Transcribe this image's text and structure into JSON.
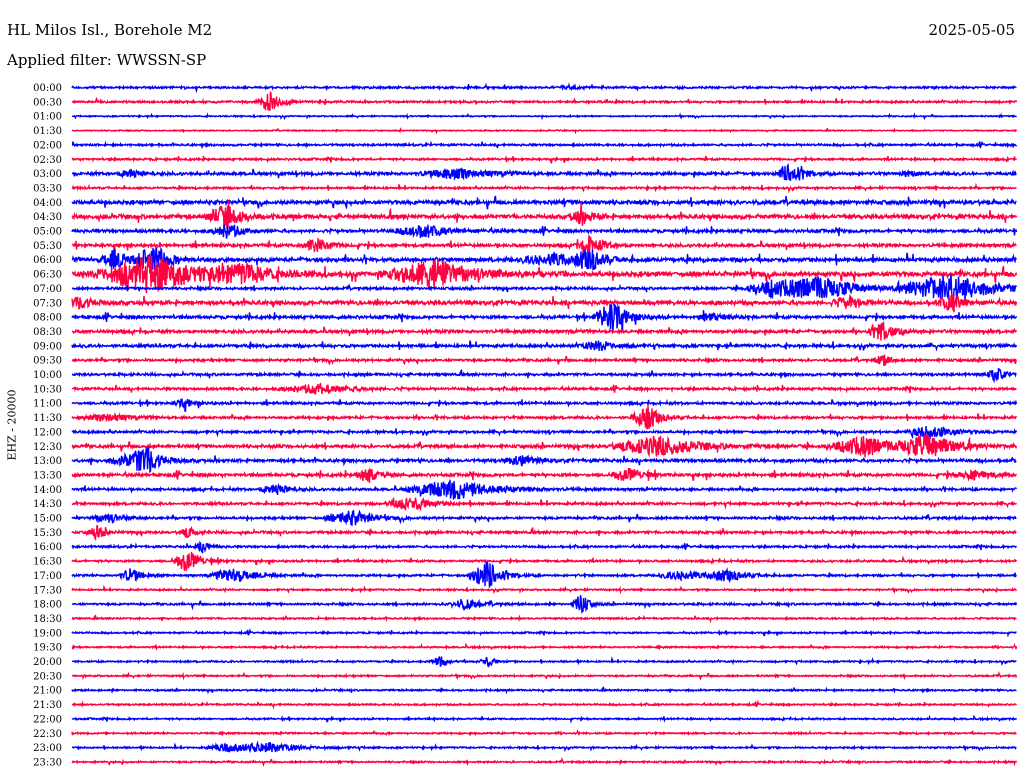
{
  "header": {
    "station": "HL Milos Isl., Borehole M2",
    "date": "2025-05-05",
    "filter": "Applied filter: WWSSN-SP"
  },
  "chart_data": {
    "type": "line",
    "title": "HL Milos Isl., Borehole M2",
    "ylabel": "EHZ - 20000",
    "row_minutes": 30,
    "colors": [
      "#0000ff",
      "#ff0040"
    ],
    "rows": [
      "00:00",
      "00:30",
      "01:00",
      "01:30",
      "02:00",
      "02:30",
      "03:00",
      "03:30",
      "04:00",
      "04:30",
      "05:00",
      "05:30",
      "06:00",
      "06:30",
      "07:00",
      "07:30",
      "08:00",
      "08:30",
      "09:00",
      "09:30",
      "10:00",
      "10:30",
      "11:00",
      "11:30",
      "12:00",
      "12:30",
      "13:00",
      "13:30",
      "14:00",
      "14:30",
      "15:00",
      "15:30",
      "16:00",
      "16:30",
      "17:00",
      "17:30",
      "18:00",
      "18:30",
      "19:00",
      "19:30",
      "20:00",
      "20:30",
      "21:00",
      "21:30",
      "22:00",
      "22:30",
      "23:00",
      "23:30"
    ],
    "noise_levels": [
      1,
      1,
      0.6,
      0.5,
      1,
      1,
      1.5,
      1,
      2,
      2,
      1.5,
      1.5,
      2,
      2.5,
      1.2,
      2,
      1.5,
      1.5,
      1.5,
      1.2,
      1.2,
      1.2,
      1.2,
      1.2,
      1.2,
      1.5,
      1.5,
      1.5,
      1.2,
      1.2,
      1.2,
      1.2,
      1,
      1,
      1,
      0.8,
      1,
      0.8,
      0.8,
      0.8,
      0.8,
      0.8,
      0.8,
      0.8,
      0.8,
      0.8,
      0.8,
      0.8
    ],
    "events": [
      {
        "row": 0,
        "minute": 15.8,
        "amp": 2,
        "dur": 0.3
      },
      {
        "row": 1,
        "minute": 6.3,
        "amp": 10,
        "dur": 0.4
      },
      {
        "row": 6,
        "minute": 1.9,
        "amp": 5,
        "dur": 0.4
      },
      {
        "row": 6,
        "minute": 12.3,
        "amp": 5,
        "dur": 1.2
      },
      {
        "row": 6,
        "minute": 22.9,
        "amp": 10,
        "dur": 0.5
      },
      {
        "row": 6,
        "minute": 26.6,
        "amp": 3,
        "dur": 0.3
      },
      {
        "row": 9,
        "minute": 4.9,
        "amp": 12,
        "dur": 0.6
      },
      {
        "row": 9,
        "minute": 16.2,
        "amp": 8,
        "dur": 0.4
      },
      {
        "row": 10,
        "minute": 5,
        "amp": 8,
        "dur": 0.5
      },
      {
        "row": 10,
        "minute": 11.2,
        "amp": 6,
        "dur": 1
      },
      {
        "row": 11,
        "minute": 7.8,
        "amp": 8,
        "dur": 0.5
      },
      {
        "row": 11,
        "minute": 16.5,
        "amp": 10,
        "dur": 0.5
      },
      {
        "row": 12,
        "minute": 1.4,
        "amp": 10,
        "dur": 0.5
      },
      {
        "row": 12,
        "minute": 2.6,
        "amp": 14,
        "dur": 0.6
      },
      {
        "row": 12,
        "minute": 15.3,
        "amp": 6,
        "dur": 1
      },
      {
        "row": 12,
        "minute": 16.5,
        "amp": 10,
        "dur": 0.5
      },
      {
        "row": 13,
        "minute": 2.6,
        "amp": 18,
        "dur": 1.8
      },
      {
        "row": 13,
        "minute": 5.5,
        "amp": 8,
        "dur": 1.2
      },
      {
        "row": 13,
        "minute": 11.5,
        "amp": 14,
        "dur": 1.5
      },
      {
        "row": 14,
        "minute": 22.2,
        "amp": 8,
        "dur": 0.8
      },
      {
        "row": 14,
        "minute": 23.8,
        "amp": 12,
        "dur": 1.5
      },
      {
        "row": 14,
        "minute": 28,
        "amp": 15,
        "dur": 1.6
      },
      {
        "row": 15,
        "minute": 0.3,
        "amp": 5,
        "dur": 0.6
      },
      {
        "row": 15,
        "minute": 24.7,
        "amp": 5,
        "dur": 0.6
      },
      {
        "row": 15,
        "minute": 28,
        "amp": 8,
        "dur": 0.5
      },
      {
        "row": 16,
        "minute": 17.2,
        "amp": 15,
        "dur": 0.6
      },
      {
        "row": 16,
        "minute": 20.3,
        "amp": 4,
        "dur": 0.5
      },
      {
        "row": 17,
        "minute": 25.8,
        "amp": 10,
        "dur": 0.5
      },
      {
        "row": 18,
        "minute": 16.8,
        "amp": 5,
        "dur": 0.6
      },
      {
        "row": 19,
        "minute": 25.8,
        "amp": 5,
        "dur": 0.3
      },
      {
        "row": 20,
        "minute": 29.4,
        "amp": 7,
        "dur": 0.3
      },
      {
        "row": 21,
        "minute": 7.9,
        "amp": 5,
        "dur": 1.2
      },
      {
        "row": 22,
        "minute": 3.6,
        "amp": 4,
        "dur": 0.4
      },
      {
        "row": 23,
        "minute": 1.2,
        "amp": 4,
        "dur": 0.8
      },
      {
        "row": 23,
        "minute": 18.3,
        "amp": 12,
        "dur": 0.5
      },
      {
        "row": 24,
        "minute": 27.4,
        "amp": 7,
        "dur": 0.8
      },
      {
        "row": 25,
        "minute": 18.7,
        "amp": 10,
        "dur": 1.5
      },
      {
        "row": 25,
        "minute": 25.2,
        "amp": 10,
        "dur": 1.2
      },
      {
        "row": 25,
        "minute": 27.3,
        "amp": 12,
        "dur": 1
      },
      {
        "row": 26,
        "minute": 1.9,
        "amp": 6,
        "dur": 0.8
      },
      {
        "row": 26,
        "minute": 2.4,
        "amp": 10,
        "dur": 0.6
      },
      {
        "row": 26,
        "minute": 14.3,
        "amp": 5,
        "dur": 0.6
      },
      {
        "row": 27,
        "minute": 9.4,
        "amp": 8,
        "dur": 0.4
      },
      {
        "row": 27,
        "minute": 17.7,
        "amp": 7,
        "dur": 0.6
      },
      {
        "row": 27,
        "minute": 28.7,
        "amp": 4,
        "dur": 0.8
      },
      {
        "row": 28,
        "minute": 6.5,
        "amp": 6,
        "dur": 0.5
      },
      {
        "row": 28,
        "minute": 12.2,
        "amp": 10,
        "dur": 1.5
      },
      {
        "row": 29,
        "minute": 10.8,
        "amp": 7,
        "dur": 0.8
      },
      {
        "row": 30,
        "minute": 1.2,
        "amp": 4,
        "dur": 0.6
      },
      {
        "row": 30,
        "minute": 8.9,
        "amp": 8,
        "dur": 0.8
      },
      {
        "row": 31,
        "minute": 0.8,
        "amp": 7,
        "dur": 0.3
      },
      {
        "row": 31,
        "minute": 3.7,
        "amp": 5,
        "dur": 0.3
      },
      {
        "row": 32,
        "minute": 4.2,
        "amp": 5,
        "dur": 0.3
      },
      {
        "row": 33,
        "minute": 3.7,
        "amp": 12,
        "dur": 0.5
      },
      {
        "row": 34,
        "minute": 1.9,
        "amp": 7,
        "dur": 0.4
      },
      {
        "row": 34,
        "minute": 5.2,
        "amp": 7,
        "dur": 0.8
      },
      {
        "row": 34,
        "minute": 13.2,
        "amp": 14,
        "dur": 0.6
      },
      {
        "row": 34,
        "minute": 19.5,
        "amp": 5,
        "dur": 0.8
      },
      {
        "row": 34,
        "minute": 20.9,
        "amp": 5,
        "dur": 0.7
      },
      {
        "row": 36,
        "minute": 12.5,
        "amp": 5,
        "dur": 0.6
      },
      {
        "row": 36,
        "minute": 16.2,
        "amp": 10,
        "dur": 0.3
      },
      {
        "row": 40,
        "minute": 11.7,
        "amp": 5,
        "dur": 0.3
      },
      {
        "row": 40,
        "minute": 13.2,
        "amp": 5,
        "dur": 0.3
      },
      {
        "row": 46,
        "minute": 4.9,
        "amp": 4,
        "dur": 0.6
      },
      {
        "row": 46,
        "minute": 6.3,
        "amp": 5,
        "dur": 1.2
      }
    ]
  }
}
